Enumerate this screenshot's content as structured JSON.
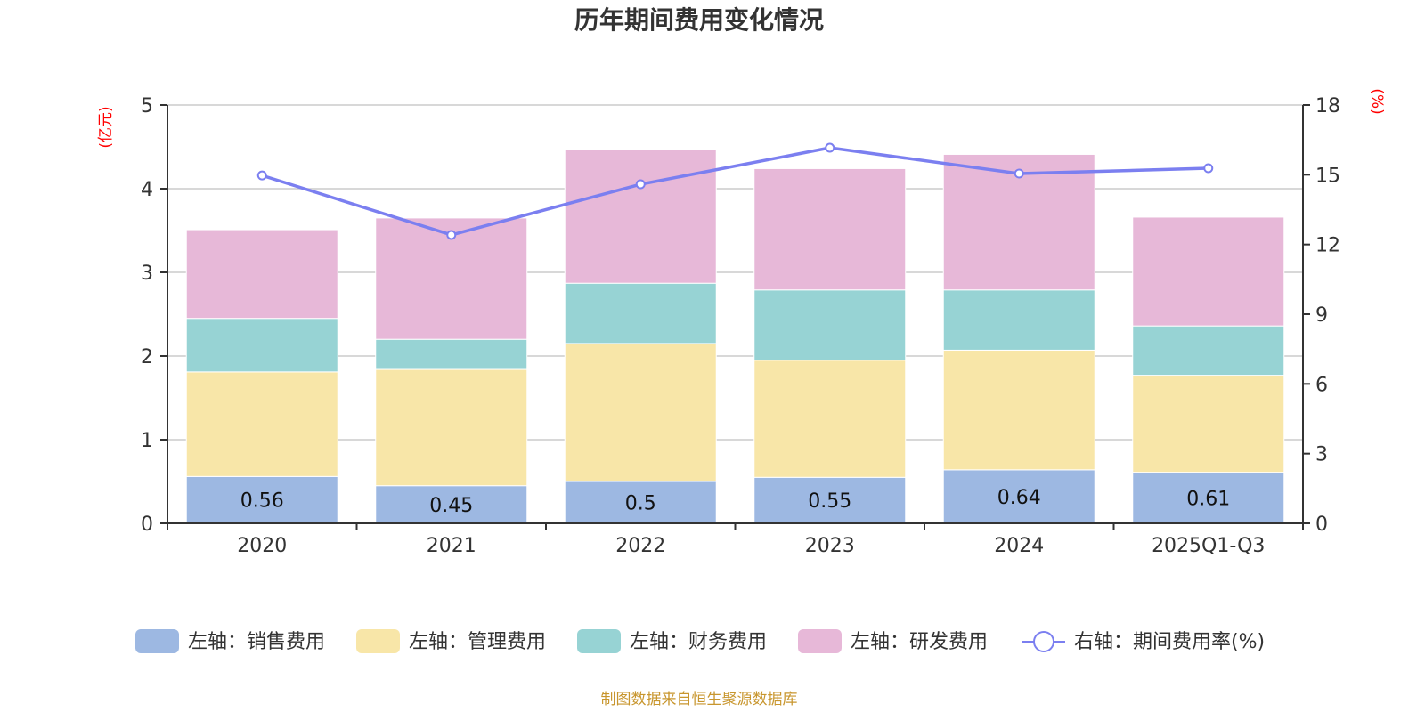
{
  "chart_data": {
    "type": "bar",
    "stacked": true,
    "title": "历年期间费用变化情况",
    "categories": [
      "2020",
      "2021",
      "2022",
      "2023",
      "2024",
      "2025Q1-Q3"
    ],
    "left_axis": {
      "unit_label": "(亿元)",
      "ylim": [
        0,
        5
      ],
      "ticks": [
        "0",
        "1",
        "2",
        "3",
        "4",
        "5"
      ]
    },
    "right_axis": {
      "unit_label": "(%)",
      "ylim": [
        0,
        18
      ],
      "ticks": [
        "0",
        "3",
        "6",
        "9",
        "12",
        "15",
        "18"
      ]
    },
    "grid": true,
    "series": [
      {
        "name": "左轴：销售费用",
        "axis": "left",
        "type": "bar",
        "color": "#9db8e2",
        "values": [
          0.56,
          0.45,
          0.5,
          0.55,
          0.64,
          0.61
        ],
        "labels": [
          "0.56",
          "0.45",
          "0.5",
          "0.55",
          "0.64",
          "0.61"
        ]
      },
      {
        "name": "左轴：管理费用",
        "axis": "left",
        "type": "bar",
        "color": "#f8e6a8",
        "values": [
          1.25,
          1.39,
          1.65,
          1.4,
          1.43,
          1.16
        ]
      },
      {
        "name": "左轴：财务费用",
        "axis": "left",
        "type": "bar",
        "color": "#97d3d4",
        "values": [
          0.64,
          0.36,
          0.72,
          0.84,
          0.72,
          0.59
        ]
      },
      {
        "name": "左轴：研发费用",
        "axis": "left",
        "type": "bar",
        "color": "#e7b8d8",
        "values": [
          1.06,
          1.45,
          1.6,
          1.45,
          1.62,
          1.3
        ]
      },
      {
        "name": "右轴：期间费用率(%)",
        "axis": "right",
        "type": "line",
        "color": "#7b7ff0",
        "values": [
          14.97,
          12.41,
          14.59,
          16.16,
          15.05,
          15.28
        ]
      }
    ],
    "legend_position": "bottom"
  },
  "source": "制图数据来自恒生聚源数据库"
}
